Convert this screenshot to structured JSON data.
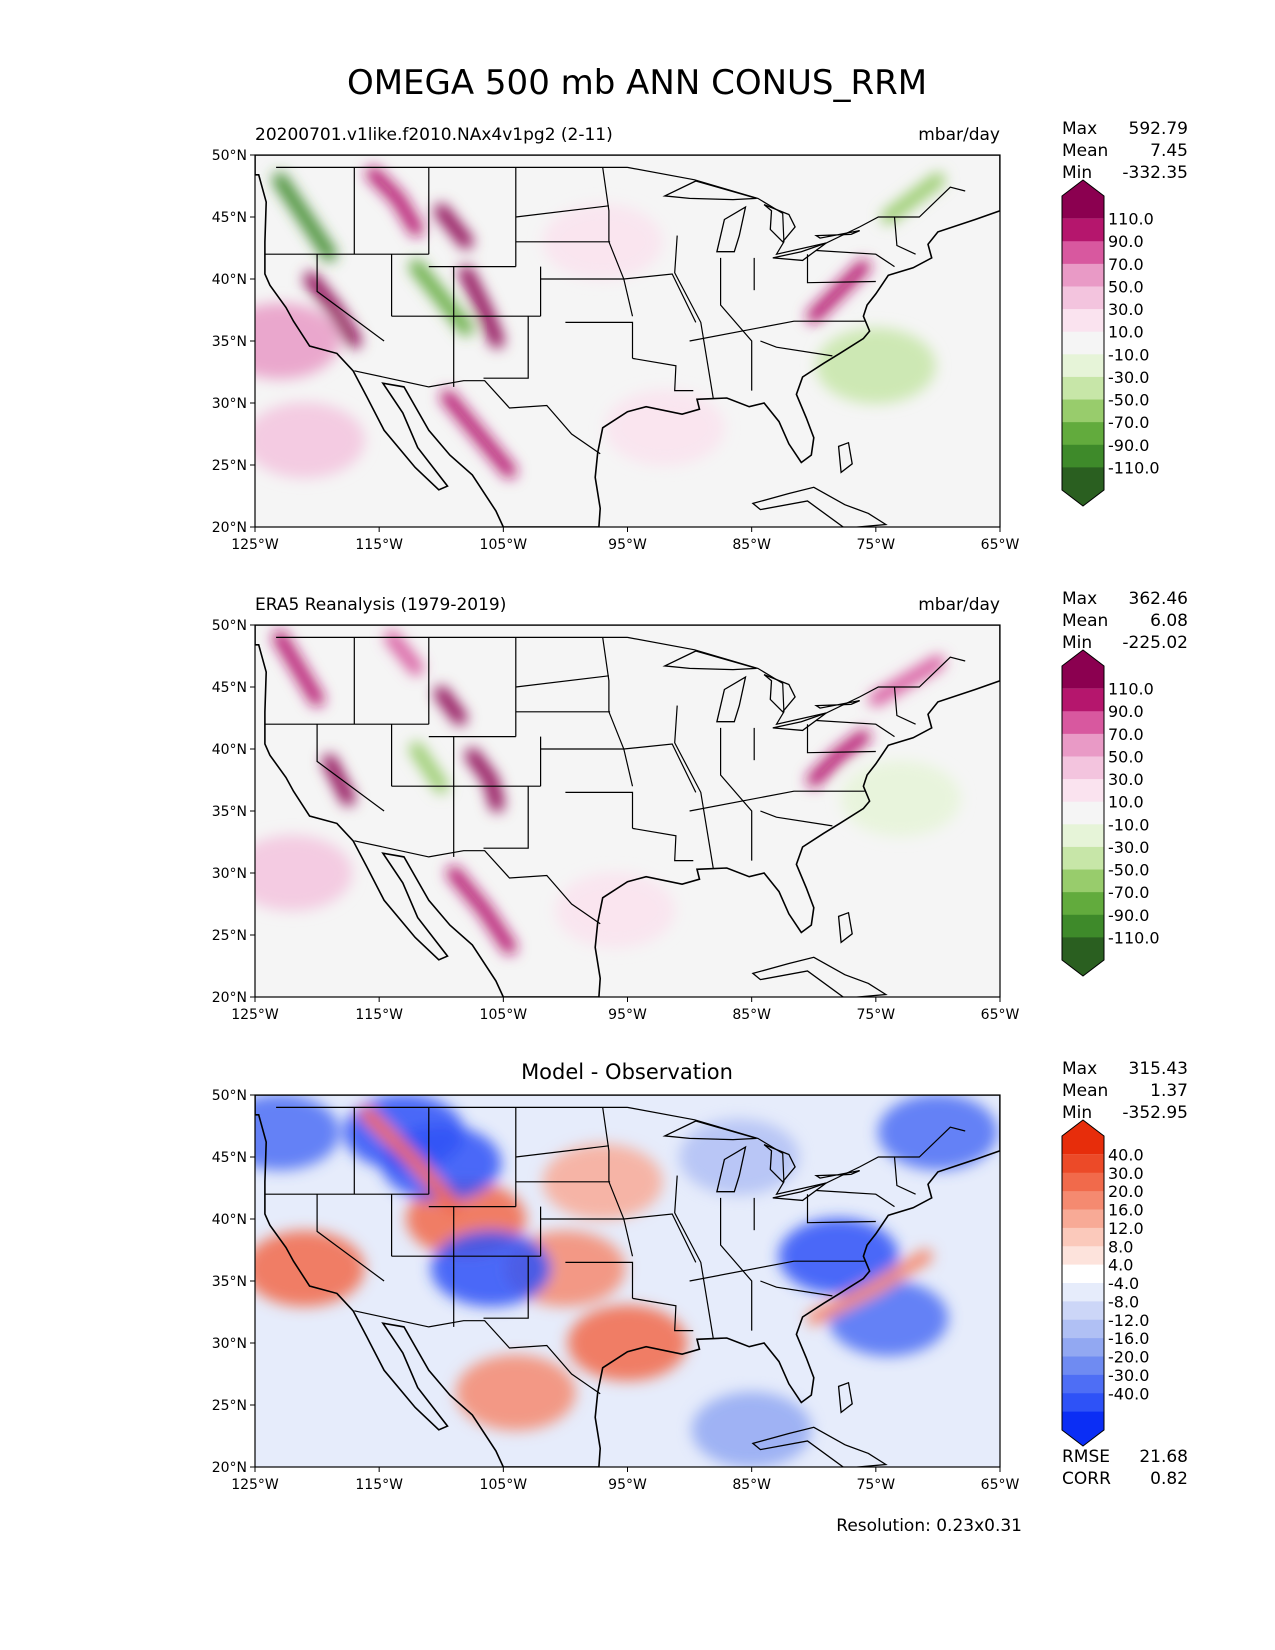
{
  "figure": {
    "title": "OMEGA 500 mb ANN CONUS_RRM",
    "resolution": "Resolution: 0.23x0.31"
  },
  "colors": {
    "ocean": "#f6f6f4",
    "coast": "#000000",
    "pinkgreen": [
      "#2a5f20",
      "#3e8a2a",
      "#62ab3d",
      "#98cc6c",
      "#c7e6a8",
      "#e6f4d8",
      "#f5f5f5",
      "#fae3ef",
      "#f3c4de",
      "#e99ac6",
      "#d8589f",
      "#b5166d",
      "#8b0050"
    ],
    "bluered": [
      "#0b2ef5",
      "#2e52f7",
      "#4e6ef5",
      "#6f8bf2",
      "#92a8f2",
      "#b0c0f4",
      "#ccd6f7",
      "#e6ecfb",
      "#ffffff",
      "#fde3dc",
      "#fbc9bb",
      "#f8aa96",
      "#f58a70",
      "#f16a4b",
      "#ec4a28",
      "#e72d0b"
    ]
  },
  "chart_data": [
    {
      "type": "heatmap",
      "title": "20200701.v1like.f2010.NAx4v1pg2 (2-11)",
      "units": "mbar/day",
      "stats": {
        "max_label": "Max",
        "mean_label": "Mean",
        "min_label": "Min",
        "max": "592.79",
        "mean": "7.45",
        "min": "-332.35"
      },
      "colorbar": {
        "levels": [
          -110,
          -90,
          -70,
          -50,
          -30,
          -10,
          10,
          30,
          50,
          70,
          90,
          110
        ],
        "labels": [
          "110.0",
          "90.0",
          "70.0",
          "50.0",
          "30.0",
          "10.0",
          "-10.0",
          "-30.0",
          "-50.0",
          "-70.0",
          "-90.0",
          "-110.0"
        ],
        "extend": "both"
      },
      "xlim": [
        -125,
        -65
      ],
      "ylim": [
        20,
        50
      ],
      "xticks": [
        "125°W",
        "115°W",
        "105°W",
        "95°W",
        "85°W",
        "75°W",
        "65°W"
      ],
      "yticks": [
        "20°N",
        "25°N",
        "30°N",
        "35°N",
        "40°N",
        "45°N",
        "50°N"
      ],
      "features": [
        {
          "kind": "ridge",
          "lon": [
            -123,
            -121,
            -119
          ],
          "lat": [
            48,
            45,
            42
          ],
          "value": -95
        },
        {
          "kind": "ridge",
          "lon": [
            -120.5,
            -118.5,
            -117
          ],
          "lat": [
            40,
            37.5,
            35
          ],
          "value": 110
        },
        {
          "kind": "ridge",
          "lon": [
            -115.5,
            -113.5,
            -112
          ],
          "lat": [
            48.5,
            46.5,
            44
          ],
          "value": 100
        },
        {
          "kind": "ridge",
          "lon": [
            -110,
            -108
          ],
          "lat": [
            45.5,
            43
          ],
          "value": 115
        },
        {
          "kind": "ridge",
          "lon": [
            -108,
            -106.5,
            -105.5
          ],
          "lat": [
            40.5,
            37.5,
            35
          ],
          "value": 110
        },
        {
          "kind": "ridge",
          "lon": [
            -109.5,
            -107,
            -104.5
          ],
          "lat": [
            30.5,
            27.5,
            24.5
          ],
          "value": 100
        },
        {
          "kind": "ridge",
          "lon": [
            -112,
            -110,
            -108
          ],
          "lat": [
            41,
            38.5,
            36
          ],
          "value": -80
        },
        {
          "kind": "ridge",
          "lon": [
            -80,
            -78,
            -76
          ],
          "lat": [
            37,
            39,
            41
          ],
          "value": 95
        },
        {
          "kind": "ridge",
          "lon": [
            -74,
            -72,
            -70
          ],
          "lat": [
            45,
            46.5,
            48
          ],
          "value": -60
        },
        {
          "kind": "blob",
          "lon": -123,
          "lat": 35,
          "value": 55
        },
        {
          "kind": "blob",
          "lon": -121,
          "lat": 27,
          "value": 35
        },
        {
          "kind": "blob",
          "lon": -75,
          "lat": 33,
          "value": -35
        },
        {
          "kind": "blob",
          "lon": -97,
          "lat": 43,
          "value": 25
        },
        {
          "kind": "blob",
          "lon": -92,
          "lat": 28,
          "value": 15
        }
      ]
    },
    {
      "type": "heatmap",
      "title": "ERA5 Reanalysis (1979-2019)",
      "units": "mbar/day",
      "stats": {
        "max_label": "Max",
        "mean_label": "Mean",
        "min_label": "Min",
        "max": "362.46",
        "mean": "6.08",
        "min": "-225.02"
      },
      "colorbar": {
        "levels": [
          -110,
          -90,
          -70,
          -50,
          -30,
          -10,
          10,
          30,
          50,
          70,
          90,
          110
        ],
        "labels": [
          "110.0",
          "90.0",
          "70.0",
          "50.0",
          "30.0",
          "10.0",
          "-10.0",
          "-30.0",
          "-50.0",
          "-70.0",
          "-90.0",
          "-110.0"
        ],
        "extend": "both"
      },
      "xlim": [
        -125,
        -65
      ],
      "ylim": [
        20,
        50
      ],
      "xticks": [
        "125°W",
        "115°W",
        "105°W",
        "95°W",
        "85°W",
        "75°W",
        "65°W"
      ],
      "yticks": [
        "20°N",
        "25°N",
        "30°N",
        "35°N",
        "40°N",
        "45°N",
        "50°N"
      ],
      "features": [
        {
          "kind": "ridge",
          "lon": [
            -123,
            -121.5,
            -120
          ],
          "lat": [
            49,
            46.5,
            44
          ],
          "value": 90
        },
        {
          "kind": "ridge",
          "lon": [
            -119,
            -117.5
          ],
          "lat": [
            39,
            36
          ],
          "value": 115
        },
        {
          "kind": "ridge",
          "lon": [
            -114,
            -112
          ],
          "lat": [
            49,
            46.5
          ],
          "value": 85
        },
        {
          "kind": "ridge",
          "lon": [
            -110,
            -108.5
          ],
          "lat": [
            44.5,
            42.5
          ],
          "value": 110
        },
        {
          "kind": "ridge",
          "lon": [
            -107.5,
            -106,
            -105.5
          ],
          "lat": [
            39.5,
            37.5,
            35.5
          ],
          "value": 110
        },
        {
          "kind": "ridge",
          "lon": [
            -109,
            -106.5,
            -104.5
          ],
          "lat": [
            30,
            27,
            24
          ],
          "value": 95
        },
        {
          "kind": "ridge",
          "lon": [
            -112,
            -110
          ],
          "lat": [
            40,
            37
          ],
          "value": -70
        },
        {
          "kind": "ridge",
          "lon": [
            -80,
            -78,
            -76
          ],
          "lat": [
            37.5,
            39.5,
            41
          ],
          "value": 90
        },
        {
          "kind": "ridge",
          "lon": [
            -75,
            -72.5,
            -70
          ],
          "lat": [
            44,
            45.5,
            47
          ],
          "value": 70
        },
        {
          "kind": "blob",
          "lon": -122,
          "lat": 30,
          "value": 40
        },
        {
          "kind": "blob",
          "lon": -73,
          "lat": 36,
          "value": -30
        },
        {
          "kind": "blob",
          "lon": -96,
          "lat": 27,
          "value": 15
        }
      ]
    },
    {
      "type": "heatmap",
      "title": "Model - Observation",
      "units": "",
      "stats": {
        "max_label": "Max",
        "mean_label": "Mean",
        "min_label": "Min",
        "max": "315.43",
        "mean": "1.37",
        "min": "-352.95",
        "rmse_label": "RMSE",
        "corr_label": "CORR",
        "rmse": "21.68",
        "corr": "0.82"
      },
      "colorbar": {
        "levels": [
          -40,
          -30,
          -20,
          -16,
          -12,
          -8,
          -4,
          4,
          8,
          12,
          16,
          20,
          30,
          40
        ],
        "labels": [
          "40.0",
          "30.0",
          "20.0",
          "16.0",
          "12.0",
          "8.0",
          "4.0",
          "-4.0",
          "-8.0",
          "-12.0",
          "-16.0",
          "-20.0",
          "-30.0",
          "-40.0"
        ],
        "extend": "both"
      },
      "xlim": [
        -125,
        -65
      ],
      "ylim": [
        20,
        50
      ],
      "xticks": [
        "125°W",
        "115°W",
        "105°W",
        "95°W",
        "85°W",
        "75°W",
        "65°W"
      ],
      "yticks": [
        "20°N",
        "25°N",
        "30°N",
        "35°N",
        "40°N",
        "45°N",
        "50°N"
      ],
      "features": [
        {
          "kind": "blob",
          "lon": -95,
          "lat": 30,
          "value": 35
        },
        {
          "kind": "blob",
          "lon": -100,
          "lat": 36,
          "value": 22
        },
        {
          "kind": "blob",
          "lon": -97,
          "lat": 43,
          "value": 18
        },
        {
          "kind": "blob",
          "lon": -121,
          "lat": 36,
          "value": 30
        },
        {
          "kind": "blob",
          "lon": -108,
          "lat": 40,
          "value": 38
        },
        {
          "kind": "blob",
          "lon": -110,
          "lat": 44.5,
          "value": -40
        },
        {
          "kind": "blob",
          "lon": -113,
          "lat": 47,
          "value": -35
        },
        {
          "kind": "blob",
          "lon": -123,
          "lat": 47,
          "value": -30
        },
        {
          "kind": "blob",
          "lon": -106,
          "lat": 36,
          "value": -38
        },
        {
          "kind": "blob",
          "lon": -78,
          "lat": 37,
          "value": -38
        },
        {
          "kind": "blob",
          "lon": -74,
          "lat": 32,
          "value": -22
        },
        {
          "kind": "blob",
          "lon": -86,
          "lat": 45,
          "value": -12
        },
        {
          "kind": "blob",
          "lon": -70,
          "lat": 47,
          "value": -25
        },
        {
          "kind": "blob",
          "lon": -85,
          "lat": 23,
          "value": -14
        },
        {
          "kind": "blob",
          "lon": -104,
          "lat": 26,
          "value": 25
        },
        {
          "kind": "ridge",
          "lon": [
            -80,
            -75,
            -71
          ],
          "lat": [
            32,
            34.5,
            37
          ],
          "value": 20
        },
        {
          "kind": "ridge",
          "lon": [
            -116,
            -112,
            -109
          ],
          "lat": [
            48.5,
            44.5,
            41
          ],
          "value": 35
        }
      ]
    }
  ]
}
